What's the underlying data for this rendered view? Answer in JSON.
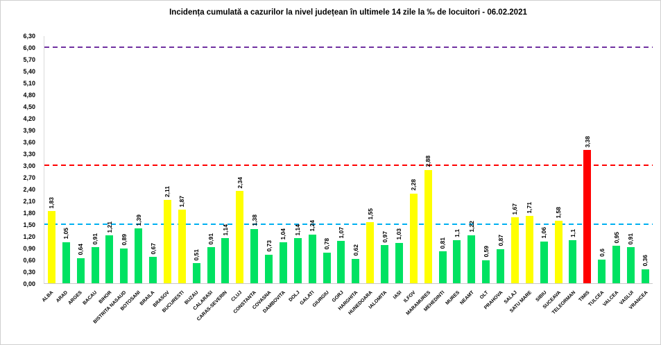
{
  "chart_data": {
    "type": "bar",
    "title": "Incidența cumulată a cazurilor la nivel județean în ultimele 14 zile la ‰ de locuitori - 06.02.2021",
    "xlabel": "",
    "ylabel": "",
    "ylim": [
      0,
      6.3
    ],
    "y_tick_step": 0.3,
    "grid": false,
    "legend": false,
    "y_ticks": [
      "6,30",
      "6,00",
      "5,70",
      "5,40",
      "5,10",
      "4,80",
      "4,50",
      "4,20",
      "3,90",
      "3,60",
      "3,30",
      "3,00",
      "2,70",
      "2,40",
      "2,10",
      "1,80",
      "1,50",
      "1,20",
      "0,90",
      "0,60",
      "0,30",
      "0,00"
    ],
    "categories": [
      "ALBA",
      "ARAD",
      "ARGES",
      "BACAU",
      "BIHOR",
      "BISTRITA NASAUD",
      "BOTOSANI",
      "BRAILA",
      "BRASOV",
      "BUCURESTI",
      "BUZAU",
      "CALARASI",
      "CARAS-SEVERIN",
      "CLUJ",
      "CONSTANTA",
      "COVASNA",
      "DAMBOVITA",
      "DOLJ",
      "GALATI",
      "GIURGIU",
      "GORJ",
      "HARGHITA",
      "HUNEDOARA",
      "IALOMITA",
      "IASI",
      "ILFOV",
      "MARAMURES",
      "MEHEDINTI",
      "MURES",
      "NEAMT",
      "OLT",
      "PRAHOVA",
      "SALAJ",
      "SATU MARE",
      "SIBIU",
      "SUCEAVA",
      "TELEORMAN",
      "TIMIS",
      "TULCEA",
      "VALCEA",
      "VASLUI",
      "VRANCEA"
    ],
    "values": [
      1.83,
      1.05,
      0.64,
      0.91,
      1.21,
      0.89,
      1.39,
      0.67,
      2.11,
      1.87,
      0.51,
      0.91,
      1.14,
      2.34,
      1.38,
      0.73,
      1.04,
      1.14,
      1.24,
      0.78,
      1.07,
      0.62,
      1.55,
      0.97,
      1.03,
      2.28,
      2.88,
      0.81,
      1.1,
      1.22,
      0.59,
      0.87,
      1.67,
      1.71,
      1.06,
      1.58,
      1.1,
      3.38,
      0.6,
      0.95,
      0.91,
      0.36
    ],
    "value_labels": [
      "1,83",
      "1,05",
      "0,64",
      "0,91",
      "1,21",
      "0,89",
      "1,39",
      "0,67",
      "2,11",
      "1,87",
      "0,51",
      "0,91",
      "1,14",
      "2,34",
      "1,38",
      "0,73",
      "1,04",
      "1,14",
      "1,24",
      "0,78",
      "1,07",
      "0,62",
      "1,55",
      "0,97",
      "1,03",
      "2,28",
      "2,88",
      "0,81",
      "1,1",
      "1,22",
      "0,59",
      "0,87",
      "1,67",
      "1,71",
      "1,06",
      "1,58",
      "1,1",
      "3,38",
      "0,6",
      "0,95",
      "0,91",
      "0,36"
    ],
    "bar_colors": [
      "yellow",
      "green",
      "green",
      "green",
      "green",
      "green",
      "green",
      "green",
      "yellow",
      "yellow",
      "green",
      "green",
      "green",
      "yellow",
      "green",
      "green",
      "green",
      "green",
      "green",
      "green",
      "green",
      "green",
      "yellow",
      "green",
      "green",
      "yellow",
      "yellow",
      "green",
      "green",
      "green",
      "green",
      "green",
      "yellow",
      "yellow",
      "green",
      "yellow",
      "green",
      "red",
      "green",
      "green",
      "green",
      "green"
    ],
    "palette": {
      "green": "#00E262",
      "yellow": "#FFFF00",
      "red": "#FF0000"
    },
    "thresholds": [
      {
        "value": 6.0,
        "color": "#7030A0",
        "name": "purple-threshold-line"
      },
      {
        "value": 3.0,
        "color": "#FF0000",
        "name": "red-threshold-line"
      },
      {
        "value": 1.5,
        "color": "#00B0F0",
        "name": "blue-threshold-line"
      }
    ]
  }
}
